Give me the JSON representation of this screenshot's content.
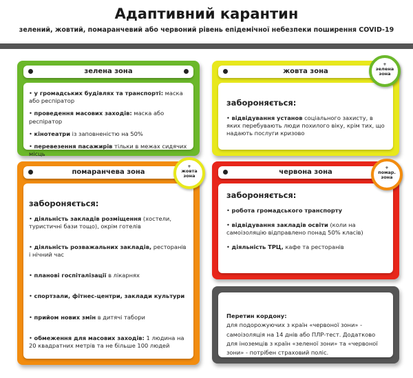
{
  "title": "Адаптивний карантин",
  "subtitle": "зелений, жовтий, помаранчевий або червоний рівень епідемічної небезпеки поширення COVID-19",
  "colors": {
    "green": "#6bb82a",
    "yellow": "#e8e81c",
    "orange": "#f28c0f",
    "red": "#e8261a",
    "gray": "#555555"
  },
  "green": {
    "label": "зелена зона",
    "items": [
      {
        "b": "у громадських будівлях та транспорті:",
        "t": " маска або респіратор"
      },
      {
        "b": "проведення масових заходів:",
        "t": " маска або респіратор"
      },
      {
        "b": "кінотеатри",
        "t": " із заповненістю на 50%"
      },
      {
        "b": "перевезення пасажирів",
        "t": " тільки в межах сидячих місць"
      }
    ]
  },
  "yellow": {
    "label": "жовта зона",
    "badge": [
      "+",
      "зелена",
      "зона"
    ],
    "forbidden": "забороняється:",
    "items": [
      {
        "b": "відвідування установ",
        "t": " соціального захисту, в яких перебувають люди похилого віку, крім тих, що надають послуги кризово"
      }
    ]
  },
  "orange": {
    "label": "помаранчева зона",
    "badge": [
      "+",
      "жовта",
      "зона"
    ],
    "forbidden": "забороняється:",
    "items": [
      {
        "b": "діяльність закладів розміщення",
        "t": " (хостели, туристичні бази тощо), окрім готелів"
      },
      {
        "b": "діяльність розважальних закладів,",
        "t": " ресторанів і нічний час"
      },
      {
        "b": "планові госпіталізації",
        "t": " в лікарнях"
      },
      {
        "b": "спортзали, фітнес-центри, заклади культури",
        "t": ""
      },
      {
        "b": "прийом нових змін",
        "t": " в дитячі табори"
      },
      {
        "b": "обмеження для масових заходів:",
        "t": " 1 людина на 20 квадратних метрів та не більше 100 людей"
      }
    ]
  },
  "red": {
    "label": "червона зона",
    "badge": [
      "+",
      "помар.",
      "зона"
    ],
    "forbidden": "забороняється:",
    "items": [
      {
        "b": "робота громадського транспорту",
        "t": ""
      },
      {
        "b": "відвідування закладів освіти",
        "t": " (коли на самоізоляцію відправлено понад 50% класів)"
      },
      {
        "b": "діяльність ТРЦ,",
        "t": " кафе та ресторанів"
      }
    ]
  },
  "border": {
    "heading": "Перетин кордону:",
    "text": "для подорожуючих з країн «червоної зони» - самоізоляція на 14 днів або ПЛР-тест. Додатково для іноземців з країн «зеленої зони» та «червоної зони» - потрібен страховий поліс."
  }
}
